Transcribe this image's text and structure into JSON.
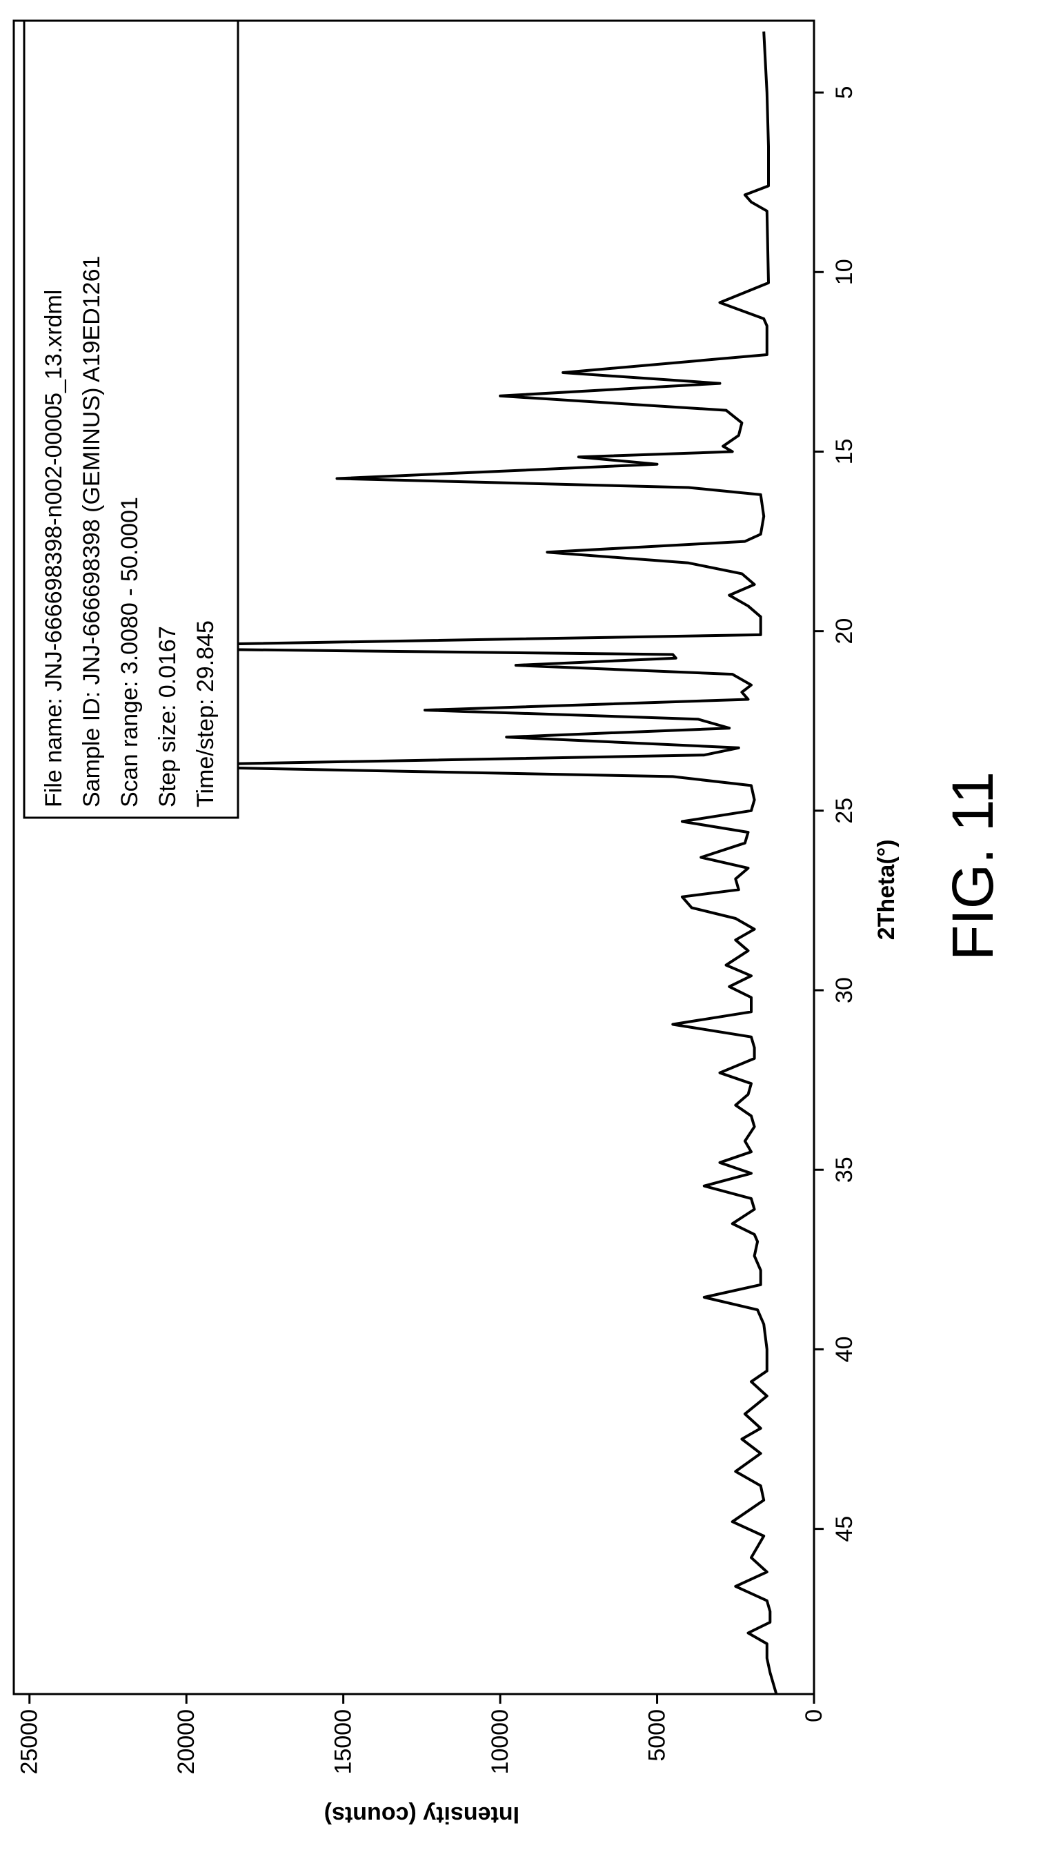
{
  "chart_data": {
    "type": "line",
    "x_title": "2Theta(°)",
    "y_title": "Intensity (counts)",
    "xlim": [
      3,
      49.6
    ],
    "ylim": [
      0,
      25500
    ],
    "x_ticks": [
      "5",
      "10",
      "15",
      "20",
      "25",
      "30",
      "35",
      "40",
      "45"
    ],
    "y_ticks": [
      "0",
      "5000",
      "10000",
      "15000",
      "20000",
      "25000"
    ],
    "legend": [
      "File name: JNJ-666698398-n002-00005_13.xrdml",
      "Sample ID: JNJ-666698398 (GEMINUS) A19ED1261",
      "Scan range: 3.0080 - 50.0001",
      "Step size: 0.0167",
      "Time/step: 29.845"
    ],
    "series": [
      {
        "points": [
          [
            3.3,
            1600
          ],
          [
            5.0,
            1500
          ],
          [
            6.5,
            1450
          ],
          [
            7.6,
            1450
          ],
          [
            7.85,
            2200
          ],
          [
            8.05,
            2000
          ],
          [
            8.3,
            1500
          ],
          [
            10.3,
            1450
          ],
          [
            10.85,
            3000
          ],
          [
            11.3,
            1600
          ],
          [
            11.5,
            1500
          ],
          [
            12.3,
            1500
          ],
          [
            12.8,
            8000
          ],
          [
            13.1,
            3000
          ],
          [
            13.45,
            10000
          ],
          [
            13.85,
            2800
          ],
          [
            14.2,
            2300
          ],
          [
            14.55,
            2400
          ],
          [
            14.85,
            2900
          ],
          [
            15.0,
            2600
          ],
          [
            15.15,
            7500
          ],
          [
            15.35,
            5000
          ],
          [
            15.75,
            15200
          ],
          [
            16.0,
            4000
          ],
          [
            16.2,
            1700
          ],
          [
            16.8,
            1600
          ],
          [
            17.3,
            1700
          ],
          [
            17.5,
            2200
          ],
          [
            17.8,
            8500
          ],
          [
            18.1,
            4000
          ],
          [
            18.4,
            2300
          ],
          [
            18.7,
            1900
          ],
          [
            19.0,
            2700
          ],
          [
            19.3,
            2100
          ],
          [
            19.6,
            1700
          ],
          [
            20.1,
            1700
          ],
          [
            20.45,
            24800
          ],
          [
            20.65,
            4500
          ],
          [
            20.75,
            4400
          ],
          [
            20.95,
            9500
          ],
          [
            21.2,
            2600
          ],
          [
            21.5,
            2000
          ],
          [
            21.7,
            2300
          ],
          [
            21.9,
            2100
          ],
          [
            22.2,
            12400
          ],
          [
            22.45,
            3700
          ],
          [
            22.7,
            2700
          ],
          [
            22.95,
            9800
          ],
          [
            23.25,
            2400
          ],
          [
            23.45,
            3500
          ],
          [
            23.75,
            22000
          ],
          [
            24.05,
            4500
          ],
          [
            24.3,
            2000
          ],
          [
            24.7,
            1900
          ],
          [
            25.0,
            2000
          ],
          [
            25.3,
            4200
          ],
          [
            25.6,
            2100
          ],
          [
            25.9,
            2200
          ],
          [
            26.3,
            3600
          ],
          [
            26.6,
            2100
          ],
          [
            26.9,
            2500
          ],
          [
            27.2,
            2400
          ],
          [
            27.4,
            4200
          ],
          [
            27.7,
            3900
          ],
          [
            28.0,
            2500
          ],
          [
            28.3,
            1900
          ],
          [
            28.6,
            2500
          ],
          [
            28.9,
            2100
          ],
          [
            29.3,
            2800
          ],
          [
            29.6,
            2000
          ],
          [
            29.9,
            2700
          ],
          [
            30.2,
            2000
          ],
          [
            30.6,
            2000
          ],
          [
            30.95,
            4500
          ],
          [
            31.3,
            2000
          ],
          [
            31.6,
            1900
          ],
          [
            31.9,
            1900
          ],
          [
            32.3,
            3000
          ],
          [
            32.6,
            2000
          ],
          [
            32.9,
            2100
          ],
          [
            33.2,
            2500
          ],
          [
            33.5,
            2000
          ],
          [
            33.8,
            1900
          ],
          [
            34.2,
            2200
          ],
          [
            34.5,
            2000
          ],
          [
            34.8,
            3000
          ],
          [
            35.1,
            2000
          ],
          [
            35.45,
            3500
          ],
          [
            35.8,
            2000
          ],
          [
            36.1,
            1900
          ],
          [
            36.5,
            2600
          ],
          [
            36.8,
            1900
          ],
          [
            37.0,
            1800
          ],
          [
            37.4,
            1900
          ],
          [
            37.8,
            1700
          ],
          [
            38.2,
            1700
          ],
          [
            38.55,
            3500
          ],
          [
            38.9,
            1800
          ],
          [
            39.3,
            1600
          ],
          [
            40.0,
            1500
          ],
          [
            40.6,
            1500
          ],
          [
            40.9,
            2000
          ],
          [
            41.3,
            1500
          ],
          [
            41.8,
            2200
          ],
          [
            42.2,
            1700
          ],
          [
            42.5,
            2300
          ],
          [
            42.9,
            1700
          ],
          [
            43.4,
            2500
          ],
          [
            43.8,
            1700
          ],
          [
            44.2,
            1600
          ],
          [
            44.8,
            2600
          ],
          [
            45.2,
            1600
          ],
          [
            45.8,
            2000
          ],
          [
            46.2,
            1500
          ],
          [
            46.6,
            2500
          ],
          [
            47.0,
            1500
          ],
          [
            47.3,
            1400
          ],
          [
            47.6,
            1400
          ],
          [
            47.9,
            2100
          ],
          [
            48.2,
            1500
          ],
          [
            48.6,
            1500
          ],
          [
            49.0,
            1400
          ],
          [
            49.6,
            1200
          ]
        ]
      }
    ]
  },
  "figure_label": "FIG. 11"
}
